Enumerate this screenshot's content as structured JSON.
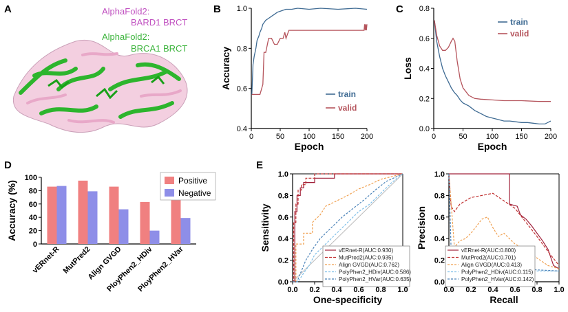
{
  "panels": {
    "A": {
      "letter": "A",
      "labels": [
        {
          "line1": "AlphaFold2:",
          "line2": "BARD1 BRCT",
          "color": "#c050c0"
        },
        {
          "line1": "AlphaFold2:",
          "line2": "BRCA1 BRCT",
          "color": "#3cb43c"
        }
      ]
    },
    "B": {
      "letter": "B"
    },
    "C": {
      "letter": "C"
    },
    "D": {
      "letter": "D"
    },
    "E": {
      "letter": "E"
    }
  },
  "chart_data": [
    {
      "id": "B",
      "type": "line",
      "xlabel": "Epoch",
      "ylabel": "Accuracy",
      "xlim": [
        0,
        200
      ],
      "ylim": [
        0.4,
        1.0
      ],
      "xticks": [
        0,
        50,
        100,
        150,
        200
      ],
      "yticks": [
        0.4,
        0.6,
        0.8,
        1.0
      ],
      "legend_position": "bottom-right",
      "series": [
        {
          "name": "train",
          "color": "#3f6b93",
          "x": [
            1,
            3,
            5,
            8,
            10,
            13,
            15,
            18,
            20,
            25,
            30,
            35,
            40,
            45,
            50,
            55,
            60,
            70,
            80,
            100,
            120,
            150,
            180,
            200
          ],
          "y": [
            0.57,
            0.72,
            0.76,
            0.8,
            0.84,
            0.86,
            0.88,
            0.9,
            0.92,
            0.94,
            0.95,
            0.96,
            0.97,
            0.98,
            0.985,
            0.99,
            0.995,
            0.995,
            1.0,
            0.995,
            1.0,
            0.995,
            1.0,
            0.995
          ]
        },
        {
          "name": "valid",
          "color": "#b5545c",
          "x": [
            1,
            15,
            20,
            22,
            25,
            30,
            35,
            40,
            45,
            50,
            55,
            58,
            60,
            65,
            70,
            75,
            100,
            150,
            195,
            196,
            197,
            198,
            199,
            200
          ],
          "y": [
            0.57,
            0.57,
            0.62,
            0.78,
            0.78,
            0.85,
            0.85,
            0.82,
            0.82,
            0.85,
            0.85,
            0.88,
            0.85,
            0.89,
            0.89,
            0.89,
            0.89,
            0.89,
            0.89,
            0.92,
            0.89,
            0.92,
            0.89,
            0.92
          ]
        }
      ]
    },
    {
      "id": "C",
      "type": "line",
      "xlabel": "Epoch",
      "ylabel": "Loss",
      "xlim": [
        0,
        200
      ],
      "ylim": [
        0,
        0.8
      ],
      "xticks": [
        0,
        50,
        100,
        150,
        200
      ],
      "yticks": [
        0.0,
        0.2,
        0.4,
        0.6,
        0.8
      ],
      "legend_position": "top-right",
      "series": [
        {
          "name": "train",
          "color": "#3f6b93",
          "x": [
            1,
            5,
            10,
            15,
            20,
            25,
            30,
            35,
            40,
            45,
            50,
            60,
            70,
            80,
            90,
            100,
            110,
            120,
            130,
            140,
            150,
            160,
            170,
            180,
            190,
            200
          ],
          "y": [
            0.72,
            0.58,
            0.48,
            0.4,
            0.35,
            0.31,
            0.27,
            0.24,
            0.22,
            0.19,
            0.17,
            0.15,
            0.12,
            0.1,
            0.08,
            0.07,
            0.06,
            0.05,
            0.05,
            0.045,
            0.04,
            0.04,
            0.035,
            0.03,
            0.03,
            0.05
          ]
        },
        {
          "name": "valid",
          "color": "#b5545c",
          "x": [
            1,
            5,
            10,
            15,
            20,
            25,
            30,
            33,
            36,
            40,
            45,
            50,
            60,
            70,
            80,
            100,
            120,
            150,
            180,
            200
          ],
          "y": [
            0.72,
            0.62,
            0.55,
            0.52,
            0.52,
            0.54,
            0.58,
            0.6,
            0.58,
            0.45,
            0.33,
            0.27,
            0.22,
            0.2,
            0.195,
            0.19,
            0.185,
            0.185,
            0.18,
            0.18
          ]
        }
      ]
    },
    {
      "id": "D",
      "type": "bar",
      "ylabel": "Accuracy (%)",
      "ylim": [
        0,
        100
      ],
      "yticks": [
        0,
        20,
        40,
        60,
        80,
        100
      ],
      "legend_position": "top-right",
      "categories": [
        "vERnet-R",
        "MutPred2",
        "Align GVGD",
        "PloyPhen2_HDiv",
        "PloyPhen2_HVar"
      ],
      "series": [
        {
          "name": "Positive",
          "color": "#f08080",
          "values": [
            86,
            95,
            86,
            63,
            72
          ]
        },
        {
          "name": "Negative",
          "color": "#8e8ee8",
          "values": [
            87,
            79,
            52,
            20,
            39
          ]
        }
      ]
    },
    {
      "id": "E-ROC",
      "type": "line",
      "xlabel": "One-specificity",
      "ylabel": "Sensitivity",
      "xlim": [
        0,
        1
      ],
      "ylim": [
        0,
        1
      ],
      "xticks": [
        0.0,
        0.2,
        0.4,
        0.6,
        0.8,
        1.0
      ],
      "yticks": [
        0.0,
        0.2,
        0.4,
        0.6,
        0.8,
        1.0
      ],
      "legend_position": "bottom-right",
      "series": [
        {
          "name": "vERnet-R(AUC:0.930)",
          "color": "#a0203a",
          "dash": "",
          "x": [
            0,
            0.02,
            0.02,
            0.04,
            0.04,
            0.07,
            0.07,
            0.1,
            0.1,
            0.2,
            0.2,
            0.38,
            0.38,
            0.6,
            0.6,
            1
          ],
          "y": [
            0,
            0,
            0.65,
            0.65,
            0.8,
            0.8,
            0.87,
            0.87,
            0.92,
            0.92,
            0.96,
            0.96,
            1,
            1,
            1,
            1
          ]
        },
        {
          "name": "MutPred2(AUC:0.935)",
          "color": "#c03030",
          "dash": "4,2",
          "x": [
            0,
            0.01,
            0.01,
            0.03,
            0.03,
            0.05,
            0.05,
            0.08,
            0.08,
            0.12,
            0.12,
            0.2,
            0.2,
            1
          ],
          "y": [
            0,
            0,
            0.55,
            0.55,
            0.72,
            0.72,
            0.85,
            0.85,
            0.9,
            0.9,
            0.96,
            0.96,
            1,
            1
          ]
        },
        {
          "name": "Align GVGD(AUC:0.762)",
          "color": "#f0a050",
          "dash": "3,2",
          "x": [
            0,
            0.03,
            0.03,
            0.1,
            0.1,
            0.18,
            0.18,
            0.25,
            0.3,
            0.4,
            0.5,
            0.6,
            0.7,
            0.8,
            1
          ],
          "y": [
            0,
            0,
            0.35,
            0.35,
            0.45,
            0.45,
            0.55,
            0.62,
            0.7,
            0.75,
            0.8,
            0.86,
            0.9,
            0.95,
            1
          ]
        },
        {
          "name": "PolyPhen2_HDiv(AUC:0.586)",
          "color": "#7fbfe8",
          "dash": "3,2",
          "x": [
            0,
            0.05,
            0.1,
            0.15,
            0.2,
            0.3,
            0.4,
            0.5,
            0.6,
            0.7,
            0.8,
            0.9,
            1
          ],
          "y": [
            0,
            0,
            0.08,
            0.15,
            0.25,
            0.35,
            0.45,
            0.55,
            0.65,
            0.72,
            0.82,
            0.92,
            1
          ]
        },
        {
          "name": "PolyPhen2_HVar(AUC:0.635)",
          "color": "#4a82b8",
          "dash": "3,2",
          "x": [
            0,
            0.04,
            0.08,
            0.12,
            0.18,
            0.25,
            0.35,
            0.45,
            0.55,
            0.65,
            0.75,
            0.85,
            1
          ],
          "y": [
            0,
            0,
            0.1,
            0.2,
            0.3,
            0.4,
            0.5,
            0.6,
            0.68,
            0.76,
            0.85,
            0.93,
            1
          ]
        }
      ]
    },
    {
      "id": "E-PR",
      "type": "line",
      "xlabel": "Recall",
      "ylabel": "Precision",
      "xlim": [
        0,
        1
      ],
      "ylim": [
        0,
        1
      ],
      "xticks": [
        0.0,
        0.2,
        0.4,
        0.6,
        0.8,
        1.0
      ],
      "yticks": [
        0.0,
        0.2,
        0.4,
        0.6,
        0.8,
        1.0
      ],
      "legend_position": "bottom-left",
      "series": [
        {
          "name": "vERnet-R(AUC:0.800)",
          "color": "#a0203a",
          "dash": "",
          "x": [
            0,
            0.05,
            0.55,
            0.55,
            0.62,
            0.65,
            0.7,
            0.75,
            0.8,
            0.85,
            0.9,
            0.95,
            1
          ],
          "y": [
            1,
            1,
            1,
            0.72,
            0.7,
            0.62,
            0.58,
            0.52,
            0.45,
            0.38,
            0.3,
            0.15,
            0.12
          ]
        },
        {
          "name": "MutPred2(AUC:0.701)",
          "color": "#c03030",
          "dash": "4,2",
          "x": [
            0,
            0.02,
            0.05,
            0.1,
            0.2,
            0.3,
            0.4,
            0.5,
            0.6,
            0.7,
            0.8,
            0.9,
            1
          ],
          "y": [
            1,
            0.7,
            0.65,
            0.72,
            0.78,
            0.8,
            0.82,
            0.75,
            0.68,
            0.55,
            0.42,
            0.28,
            0.15
          ]
        },
        {
          "name": "Align GVGD(AUC:0.413)",
          "color": "#f0a050",
          "dash": "3,2",
          "x": [
            0,
            0.05,
            0.1,
            0.15,
            0.2,
            0.3,
            0.35,
            0.4,
            0.45,
            0.5,
            0.6,
            0.7,
            0.8,
            0.9,
            1
          ],
          "y": [
            1,
            0.32,
            0.38,
            0.4,
            0.45,
            0.58,
            0.6,
            0.5,
            0.42,
            0.45,
            0.35,
            0.3,
            0.22,
            0.15,
            0.12
          ]
        },
        {
          "name": "PolyPhen2_HDiv(AUC:0.115)",
          "color": "#7fbfe8",
          "dash": "3,2",
          "x": [
            0,
            0.05,
            0.1,
            0.3,
            0.5,
            0.7,
            0.9,
            1
          ],
          "y": [
            0.2,
            0.12,
            0.1,
            0.1,
            0.1,
            0.1,
            0.1,
            0.1
          ]
        },
        {
          "name": "PolyPhen2_HVar(AUC:0.142)",
          "color": "#4a82b8",
          "dash": "3,2",
          "x": [
            0,
            0.02,
            0.05,
            0.2,
            0.4,
            0.6,
            0.8,
            1
          ],
          "y": [
            1,
            0.3,
            0.12,
            0.12,
            0.12,
            0.12,
            0.11,
            0.1
          ]
        }
      ]
    }
  ]
}
